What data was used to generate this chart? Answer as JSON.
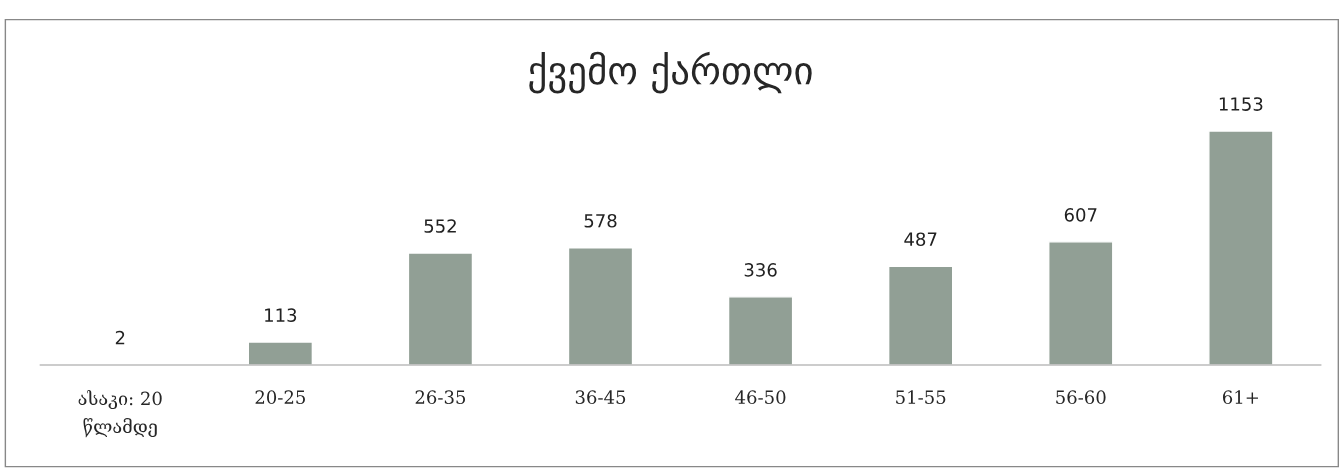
{
  "chart_data": {
    "type": "bar",
    "title": "ქვემო ქართლი",
    "categories": [
      "ასაკი: 20 წლამდე",
      "20-25",
      "26-35",
      "36-45",
      "46-50",
      "51-55",
      "56-60",
      "61+"
    ],
    "values": [
      2,
      113,
      552,
      578,
      336,
      487,
      607,
      1153
    ],
    "color": "#919f95",
    "data_labels": true,
    "grid": false,
    "legend": false
  }
}
